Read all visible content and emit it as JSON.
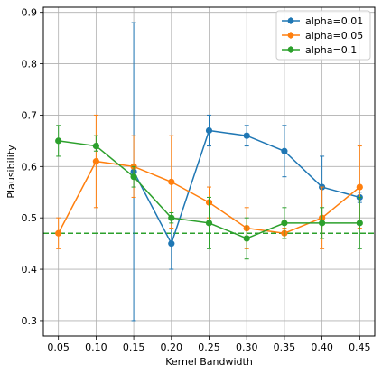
{
  "chart_data": {
    "type": "line",
    "title": "",
    "xlabel": "Kernel Bandwidth",
    "ylabel": "Plausibility",
    "x": [
      0.05,
      0.1,
      0.15,
      0.2,
      0.25,
      0.3,
      0.35,
      0.4,
      0.45
    ],
    "xticks": [
      "0.05",
      "0.10",
      "0.15",
      "0.20",
      "0.25",
      "0.30",
      "0.35",
      "0.40",
      "0.45"
    ],
    "xlim": [
      0.03,
      0.47
    ],
    "ylim": [
      0.27,
      0.91
    ],
    "yticks": [
      "0.3",
      "0.4",
      "0.5",
      "0.6",
      "0.7",
      "0.8",
      "0.9"
    ],
    "grid": true,
    "legend_position": "top-right",
    "reference_line": {
      "y": 0.47,
      "color": "#2ca02c",
      "style": "dashed"
    },
    "series": [
      {
        "name": "alpha=0.01",
        "color": "#1f77b4",
        "x": [
          0.15,
          0.2,
          0.25,
          0.3,
          0.35,
          0.4,
          0.45
        ],
        "values": [
          0.59,
          0.45,
          0.67,
          0.66,
          0.63,
          0.56,
          0.54
        ],
        "err_low": [
          0.3,
          0.4,
          0.64,
          0.64,
          0.58,
          0.5,
          0.53
        ],
        "err_high": [
          0.88,
          0.5,
          0.7,
          0.68,
          0.68,
          0.62,
          0.55
        ]
      },
      {
        "name": "alpha=0.05",
        "color": "#ff7f0e",
        "x": [
          0.05,
          0.1,
          0.15,
          0.2,
          0.25,
          0.3,
          0.35,
          0.4,
          0.45
        ],
        "values": [
          0.47,
          0.61,
          0.6,
          0.57,
          0.53,
          0.48,
          0.47,
          0.5,
          0.56
        ],
        "err_low": [
          0.44,
          0.52,
          0.54,
          0.48,
          0.5,
          0.44,
          0.46,
          0.44,
          0.48
        ],
        "err_high": [
          0.5,
          0.7,
          0.66,
          0.66,
          0.56,
          0.52,
          0.48,
          0.56,
          0.64
        ]
      },
      {
        "name": "alpha=0.1",
        "color": "#2ca02c",
        "x": [
          0.05,
          0.1,
          0.15,
          0.2,
          0.25,
          0.3,
          0.35,
          0.4,
          0.45
        ],
        "values": [
          0.65,
          0.64,
          0.58,
          0.5,
          0.49,
          0.46,
          0.49,
          0.49,
          0.49
        ],
        "err_low": [
          0.62,
          0.63,
          0.56,
          0.49,
          0.44,
          0.42,
          0.46,
          0.46,
          0.44
        ],
        "err_high": [
          0.68,
          0.66,
          0.6,
          0.51,
          0.54,
          0.5,
          0.52,
          0.52,
          0.54
        ]
      }
    ]
  }
}
